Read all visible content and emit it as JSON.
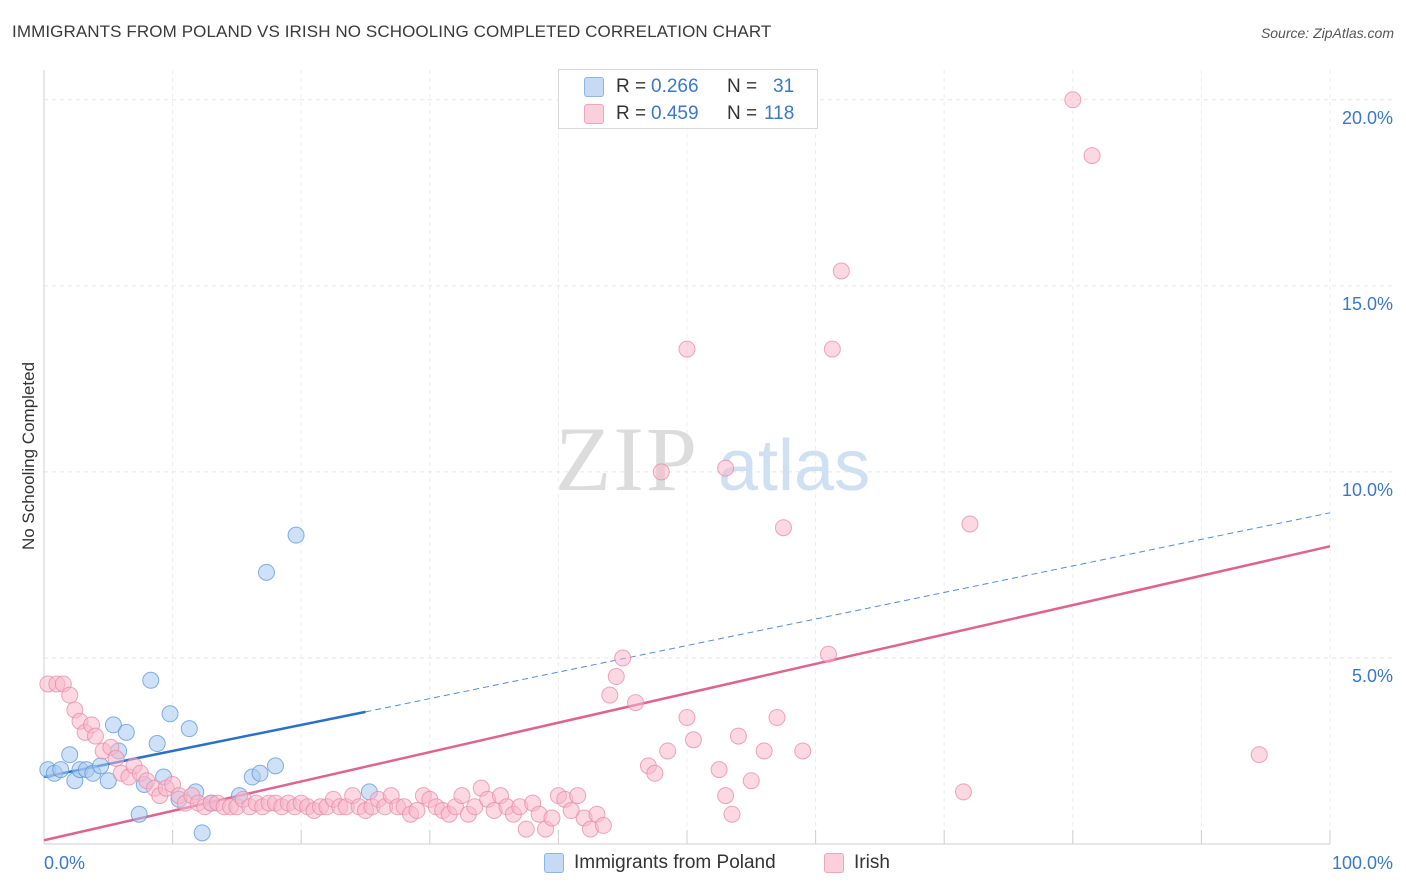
{
  "title": "IMMIGRANTS FROM POLAND VS IRISH NO SCHOOLING COMPLETED CORRELATION CHART",
  "source": "Source: ZipAtlas.com",
  "watermark": {
    "zip": "ZIP",
    "atlas": "atlas"
  },
  "legend_top": {
    "r_label": "R =",
    "n_label": "N =",
    "rows": [
      {
        "r": "0.266",
        "n": "31",
        "color": "#a8c8f0"
      },
      {
        "r": "0.459",
        "n": "118",
        "color": "#f7b8cb"
      }
    ]
  },
  "legend_bottom": [
    {
      "label": "Immigrants from Poland",
      "color": "#a8c8f0"
    },
    {
      "label": "Irish",
      "color": "#f7b8cb"
    }
  ],
  "chart_data": {
    "type": "scatter",
    "title": "IMMIGRANTS FROM POLAND VS IRISH NO SCHOOLING COMPLETED CORRELATION CHART",
    "xlabel": "",
    "ylabel": "No Schooling Completed",
    "xlim": [
      0,
      100
    ],
    "ylim": [
      0,
      20.8
    ],
    "x_tick_labels": [
      "0.0%",
      "100.0%"
    ],
    "y_ticks": [
      5,
      10,
      15,
      20
    ],
    "y_tick_labels": [
      "5.0%",
      "10.0%",
      "15.0%",
      "20.0%"
    ],
    "grid": true,
    "colors": {
      "poland": "#5b95d8",
      "poland_fill": "#a8c8f0",
      "poland_line": "#2b6fcc",
      "irish": "#e889a8",
      "irish_fill": "#f7b8cb",
      "irish_line": "#e0628e",
      "tick_label": "#3a78c9"
    },
    "series": [
      {
        "name": "Immigrants from Poland",
        "points": [
          [
            0.3,
            2.0
          ],
          [
            0.8,
            1.9
          ],
          [
            1.3,
            2.0
          ],
          [
            2.0,
            2.4
          ],
          [
            2.4,
            1.7
          ],
          [
            2.8,
            2.0
          ],
          [
            3.3,
            2.0
          ],
          [
            3.8,
            1.9
          ],
          [
            4.4,
            2.1
          ],
          [
            5.0,
            1.7
          ],
          [
            5.4,
            3.2
          ],
          [
            5.8,
            2.5
          ],
          [
            6.4,
            3.0
          ],
          [
            7.4,
            0.8
          ],
          [
            7.8,
            1.6
          ],
          [
            8.3,
            4.4
          ],
          [
            8.8,
            2.7
          ],
          [
            9.3,
            1.8
          ],
          [
            9.8,
            3.5
          ],
          [
            11.3,
            3.1
          ],
          [
            11.8,
            1.4
          ],
          [
            12.3,
            0.3
          ],
          [
            13.0,
            1.1
          ],
          [
            15.2,
            1.3
          ],
          [
            16.2,
            1.8
          ],
          [
            16.8,
            1.9
          ],
          [
            17.3,
            7.3
          ],
          [
            18.0,
            2.1
          ],
          [
            19.6,
            8.3
          ],
          [
            25.3,
            1.4
          ],
          [
            10.5,
            1.2
          ]
        ],
        "trend": {
          "x0": 0,
          "y0": 1.8,
          "x1": 25,
          "y1": 3.55,
          "dashed_to_x": 100,
          "dashed_to_y": 8.9
        }
      },
      {
        "name": "Irish",
        "points": [
          [
            0.3,
            4.3
          ],
          [
            1.0,
            4.3
          ],
          [
            1.5,
            4.3
          ],
          [
            2.0,
            4.0
          ],
          [
            2.4,
            3.6
          ],
          [
            2.8,
            3.3
          ],
          [
            3.2,
            3.0
          ],
          [
            3.7,
            3.2
          ],
          [
            4.0,
            2.9
          ],
          [
            4.6,
            2.5
          ],
          [
            5.2,
            2.6
          ],
          [
            5.6,
            2.3
          ],
          [
            6.0,
            1.9
          ],
          [
            6.6,
            1.8
          ],
          [
            7.0,
            2.1
          ],
          [
            7.5,
            1.9
          ],
          [
            8.0,
            1.7
          ],
          [
            8.6,
            1.5
          ],
          [
            9.0,
            1.3
          ],
          [
            9.5,
            1.5
          ],
          [
            10.0,
            1.6
          ],
          [
            10.5,
            1.3
          ],
          [
            11.0,
            1.1
          ],
          [
            11.5,
            1.3
          ],
          [
            12.0,
            1.1
          ],
          [
            12.5,
            1.0
          ],
          [
            13.0,
            1.1
          ],
          [
            13.5,
            1.1
          ],
          [
            14.0,
            1.0
          ],
          [
            14.5,
            1.0
          ],
          [
            15.0,
            1.0
          ],
          [
            15.5,
            1.2
          ],
          [
            16.0,
            1.0
          ],
          [
            16.5,
            1.1
          ],
          [
            17.0,
            1.0
          ],
          [
            17.5,
            1.1
          ],
          [
            18.0,
            1.1
          ],
          [
            18.5,
            1.0
          ],
          [
            19.0,
            1.1
          ],
          [
            19.5,
            1.0
          ],
          [
            20.0,
            1.1
          ],
          [
            20.5,
            1.0
          ],
          [
            21.0,
            0.9
          ],
          [
            21.5,
            1.0
          ],
          [
            22.0,
            1.0
          ],
          [
            22.5,
            1.2
          ],
          [
            23.0,
            1.0
          ],
          [
            23.5,
            1.0
          ],
          [
            24.0,
            1.3
          ],
          [
            24.5,
            1.0
          ],
          [
            25.0,
            0.9
          ],
          [
            25.5,
            1.0
          ],
          [
            26.0,
            1.2
          ],
          [
            26.5,
            1.0
          ],
          [
            27.0,
            1.3
          ],
          [
            27.5,
            1.0
          ],
          [
            28.0,
            1.0
          ],
          [
            28.5,
            0.8
          ],
          [
            29.0,
            0.9
          ],
          [
            29.5,
            1.3
          ],
          [
            30.0,
            1.2
          ],
          [
            30.5,
            1.0
          ],
          [
            31.0,
            0.9
          ],
          [
            31.5,
            0.8
          ],
          [
            32.0,
            1.0
          ],
          [
            32.5,
            1.3
          ],
          [
            33.0,
            0.8
          ],
          [
            33.5,
            1.0
          ],
          [
            34.0,
            1.5
          ],
          [
            34.5,
            1.2
          ],
          [
            35.0,
            0.9
          ],
          [
            35.5,
            1.3
          ],
          [
            36.0,
            1.0
          ],
          [
            36.5,
            0.8
          ],
          [
            37.0,
            1.0
          ],
          [
            37.5,
            0.4
          ],
          [
            38.0,
            1.1
          ],
          [
            38.5,
            0.8
          ],
          [
            39.0,
            0.4
          ],
          [
            39.5,
            0.7
          ],
          [
            40.0,
            1.3
          ],
          [
            40.5,
            1.2
          ],
          [
            41.0,
            0.9
          ],
          [
            41.5,
            1.3
          ],
          [
            42.0,
            0.7
          ],
          [
            42.5,
            0.4
          ],
          [
            43.0,
            0.8
          ],
          [
            43.5,
            0.5
          ],
          [
            44.0,
            4.0
          ],
          [
            44.5,
            4.5
          ],
          [
            45.0,
            5.0
          ],
          [
            46.0,
            3.8
          ],
          [
            47.0,
            2.1
          ],
          [
            47.5,
            1.9
          ],
          [
            48.5,
            2.5
          ],
          [
            50.0,
            3.4
          ],
          [
            50.5,
            2.8
          ],
          [
            52.5,
            2.0
          ],
          [
            53.0,
            1.3
          ],
          [
            53.5,
            0.8
          ],
          [
            54.0,
            2.9
          ],
          [
            55.0,
            1.7
          ],
          [
            56.0,
            2.5
          ],
          [
            57.0,
            3.4
          ],
          [
            57.5,
            8.5
          ],
          [
            59.0,
            2.5
          ],
          [
            61.0,
            5.1
          ],
          [
            50.0,
            13.3
          ],
          [
            61.3,
            13.3
          ],
          [
            62.0,
            15.4
          ],
          [
            53.0,
            10.1
          ],
          [
            48.0,
            10.0
          ],
          [
            72.0,
            8.6
          ],
          [
            71.5,
            1.4
          ],
          [
            80.0,
            20.0
          ],
          [
            81.5,
            18.5
          ],
          [
            94.5,
            2.4
          ]
        ],
        "trend": {
          "x0": 0,
          "y0": 0.1,
          "x1": 100,
          "y1": 8.0
        }
      }
    ]
  }
}
